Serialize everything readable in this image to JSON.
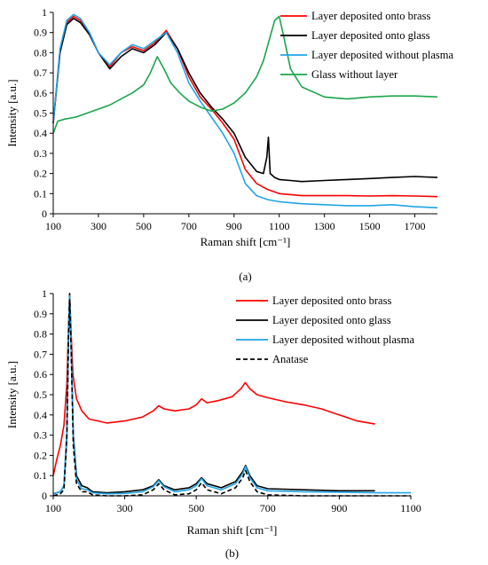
{
  "chart_data": [
    {
      "type": "line",
      "panel_label": "(a)",
      "xlabel": "Raman shift [cm⁻¹]",
      "ylabel": "Intensity [a.u.]",
      "xlim": [
        100,
        1800
      ],
      "ylim": [
        0,
        1
      ],
      "xticks": [
        100,
        300,
        500,
        700,
        900,
        1100,
        1300,
        1500,
        1700
      ],
      "yticks": [
        0,
        0.1,
        0.2,
        0.3,
        0.4,
        0.5,
        0.6,
        0.7,
        0.8,
        0.9,
        1
      ],
      "grid": false,
      "legend": "top-right",
      "series": [
        {
          "name": "Layer deposited onto brass",
          "color": "#ff0000",
          "x": [
            100,
            130,
            160,
            190,
            220,
            260,
            300,
            350,
            400,
            450,
            500,
            550,
            600,
            650,
            700,
            750,
            800,
            850,
            900,
            950,
            1000,
            1050,
            1100,
            1150,
            1200,
            1300,
            1400,
            1500,
            1600,
            1700,
            1800
          ],
          "y": [
            0.45,
            0.8,
            0.95,
            0.98,
            0.96,
            0.9,
            0.8,
            0.73,
            0.8,
            0.83,
            0.81,
            0.85,
            0.91,
            0.82,
            0.68,
            0.58,
            0.52,
            0.45,
            0.37,
            0.22,
            0.15,
            0.12,
            0.1,
            0.095,
            0.09,
            0.09,
            0.09,
            0.088,
            0.09,
            0.088,
            0.085
          ]
        },
        {
          "name": "Layer deposited onto glass",
          "color": "#000000",
          "x": [
            100,
            130,
            160,
            190,
            220,
            260,
            300,
            350,
            400,
            450,
            500,
            550,
            600,
            650,
            700,
            750,
            800,
            850,
            900,
            950,
            1000,
            1030,
            1045,
            1052,
            1060,
            1080,
            1100,
            1150,
            1200,
            1300,
            1400,
            1500,
            1600,
            1700,
            1800
          ],
          "y": [
            0.45,
            0.8,
            0.94,
            0.97,
            0.95,
            0.89,
            0.8,
            0.72,
            0.78,
            0.82,
            0.8,
            0.84,
            0.9,
            0.82,
            0.7,
            0.6,
            0.53,
            0.47,
            0.4,
            0.28,
            0.21,
            0.2,
            0.28,
            0.38,
            0.2,
            0.18,
            0.17,
            0.165,
            0.16,
            0.165,
            0.17,
            0.175,
            0.18,
            0.185,
            0.18
          ]
        },
        {
          "name": "Layer deposited without plasma",
          "color": "#1fa5e6",
          "x": [
            100,
            130,
            160,
            190,
            220,
            260,
            300,
            350,
            400,
            450,
            500,
            550,
            600,
            650,
            700,
            750,
            800,
            850,
            900,
            950,
            1000,
            1050,
            1100,
            1200,
            1300,
            1400,
            1500,
            1600,
            1700,
            1800
          ],
          "y": [
            0.45,
            0.82,
            0.96,
            0.99,
            0.97,
            0.9,
            0.8,
            0.74,
            0.8,
            0.84,
            0.82,
            0.86,
            0.9,
            0.8,
            0.65,
            0.56,
            0.48,
            0.4,
            0.3,
            0.15,
            0.09,
            0.07,
            0.06,
            0.05,
            0.045,
            0.04,
            0.04,
            0.045,
            0.035,
            0.03
          ]
        },
        {
          "name": "Glass without layer",
          "color": "#1aa64a",
          "x": [
            100,
            120,
            150,
            200,
            250,
            300,
            350,
            400,
            450,
            500,
            530,
            560,
            590,
            620,
            660,
            700,
            750,
            800,
            850,
            900,
            950,
            1000,
            1030,
            1060,
            1080,
            1100,
            1120,
            1150,
            1200,
            1300,
            1400,
            1500,
            1600,
            1700,
            1800
          ],
          "y": [
            0.4,
            0.46,
            0.47,
            0.48,
            0.5,
            0.52,
            0.54,
            0.57,
            0.6,
            0.64,
            0.7,
            0.78,
            0.72,
            0.65,
            0.6,
            0.56,
            0.53,
            0.51,
            0.52,
            0.55,
            0.6,
            0.68,
            0.76,
            0.88,
            0.96,
            0.98,
            0.88,
            0.72,
            0.63,
            0.58,
            0.57,
            0.58,
            0.585,
            0.585,
            0.58
          ]
        }
      ]
    },
    {
      "type": "line",
      "panel_label": "(b)",
      "xlabel": "Raman shift [cm⁻¹]",
      "ylabel": "Intensity [a.u.]",
      "xlim": [
        100,
        1100
      ],
      "ylim": [
        0,
        1
      ],
      "xticks": [
        100,
        300,
        500,
        700,
        900,
        1100
      ],
      "yticks": [
        0,
        0.1,
        0.2,
        0.3,
        0.4,
        0.5,
        0.6,
        0.7,
        0.8,
        0.9,
        1
      ],
      "grid": false,
      "legend": "top-right",
      "series": [
        {
          "name": "Layer deposited onto brass",
          "color": "#ff0000",
          "x": [
            100,
            110,
            120,
            130,
            138,
            143,
            146,
            150,
            155,
            165,
            180,
            200,
            250,
            300,
            350,
            380,
            395,
            410,
            440,
            480,
            500,
            515,
            530,
            560,
            600,
            625,
            637,
            650,
            670,
            700,
            750,
            800,
            850,
            900,
            950,
            1000
          ],
          "y": [
            0.1,
            0.18,
            0.25,
            0.35,
            0.55,
            0.85,
            1.0,
            0.8,
            0.6,
            0.48,
            0.42,
            0.38,
            0.36,
            0.37,
            0.39,
            0.42,
            0.445,
            0.43,
            0.42,
            0.43,
            0.45,
            0.48,
            0.46,
            0.47,
            0.49,
            0.53,
            0.56,
            0.53,
            0.5,
            0.485,
            0.465,
            0.45,
            0.43,
            0.4,
            0.37,
            0.355
          ]
        },
        {
          "name": "Layer deposited onto glass",
          "color": "#000000",
          "x": [
            100,
            120,
            130,
            138,
            143,
            146,
            150,
            156,
            165,
            180,
            195,
            210,
            250,
            300,
            350,
            380,
            395,
            410,
            440,
            480,
            500,
            515,
            530,
            570,
            610,
            630,
            638,
            650,
            670,
            700,
            800,
            900,
            1000
          ],
          "y": [
            0.01,
            0.02,
            0.05,
            0.3,
            0.8,
            1.0,
            0.75,
            0.3,
            0.1,
            0.05,
            0.04,
            0.02,
            0.015,
            0.02,
            0.03,
            0.05,
            0.08,
            0.05,
            0.03,
            0.04,
            0.06,
            0.09,
            0.06,
            0.04,
            0.07,
            0.12,
            0.15,
            0.1,
            0.05,
            0.035,
            0.03,
            0.025,
            0.025
          ]
        },
        {
          "name": "Layer deposited without plasma",
          "color": "#1fa5e6",
          "x": [
            100,
            120,
            130,
            138,
            143,
            146,
            150,
            156,
            165,
            180,
            195,
            210,
            250,
            300,
            350,
            380,
            395,
            410,
            440,
            480,
            500,
            515,
            530,
            570,
            610,
            630,
            638,
            650,
            670,
            700,
            800,
            900,
            1000,
            1100
          ],
          "y": [
            0.01,
            0.02,
            0.05,
            0.32,
            0.82,
            0.99,
            0.76,
            0.28,
            0.08,
            0.035,
            0.03,
            0.015,
            0.01,
            0.012,
            0.02,
            0.045,
            0.075,
            0.045,
            0.02,
            0.03,
            0.05,
            0.085,
            0.05,
            0.03,
            0.06,
            0.11,
            0.145,
            0.09,
            0.04,
            0.025,
            0.02,
            0.018,
            0.015,
            0.015
          ]
        },
        {
          "name": "Anatase",
          "color": "#000000",
          "dash": "5,3",
          "x": [
            100,
            120,
            130,
            138,
            143,
            146,
            150,
            156,
            165,
            180,
            195,
            210,
            250,
            300,
            350,
            380,
            395,
            410,
            440,
            480,
            500,
            515,
            530,
            570,
            610,
            630,
            638,
            650,
            670,
            700,
            800,
            900,
            1000,
            1100
          ],
          "y": [
            0.0,
            0.01,
            0.03,
            0.28,
            0.8,
            0.97,
            0.72,
            0.25,
            0.06,
            0.02,
            0.02,
            0.005,
            0.0,
            0.0,
            0.005,
            0.03,
            0.06,
            0.03,
            0.005,
            0.01,
            0.03,
            0.065,
            0.03,
            0.01,
            0.04,
            0.09,
            0.125,
            0.07,
            0.02,
            0.005,
            0.0,
            0.0,
            0.0,
            0.0
          ]
        }
      ]
    }
  ]
}
